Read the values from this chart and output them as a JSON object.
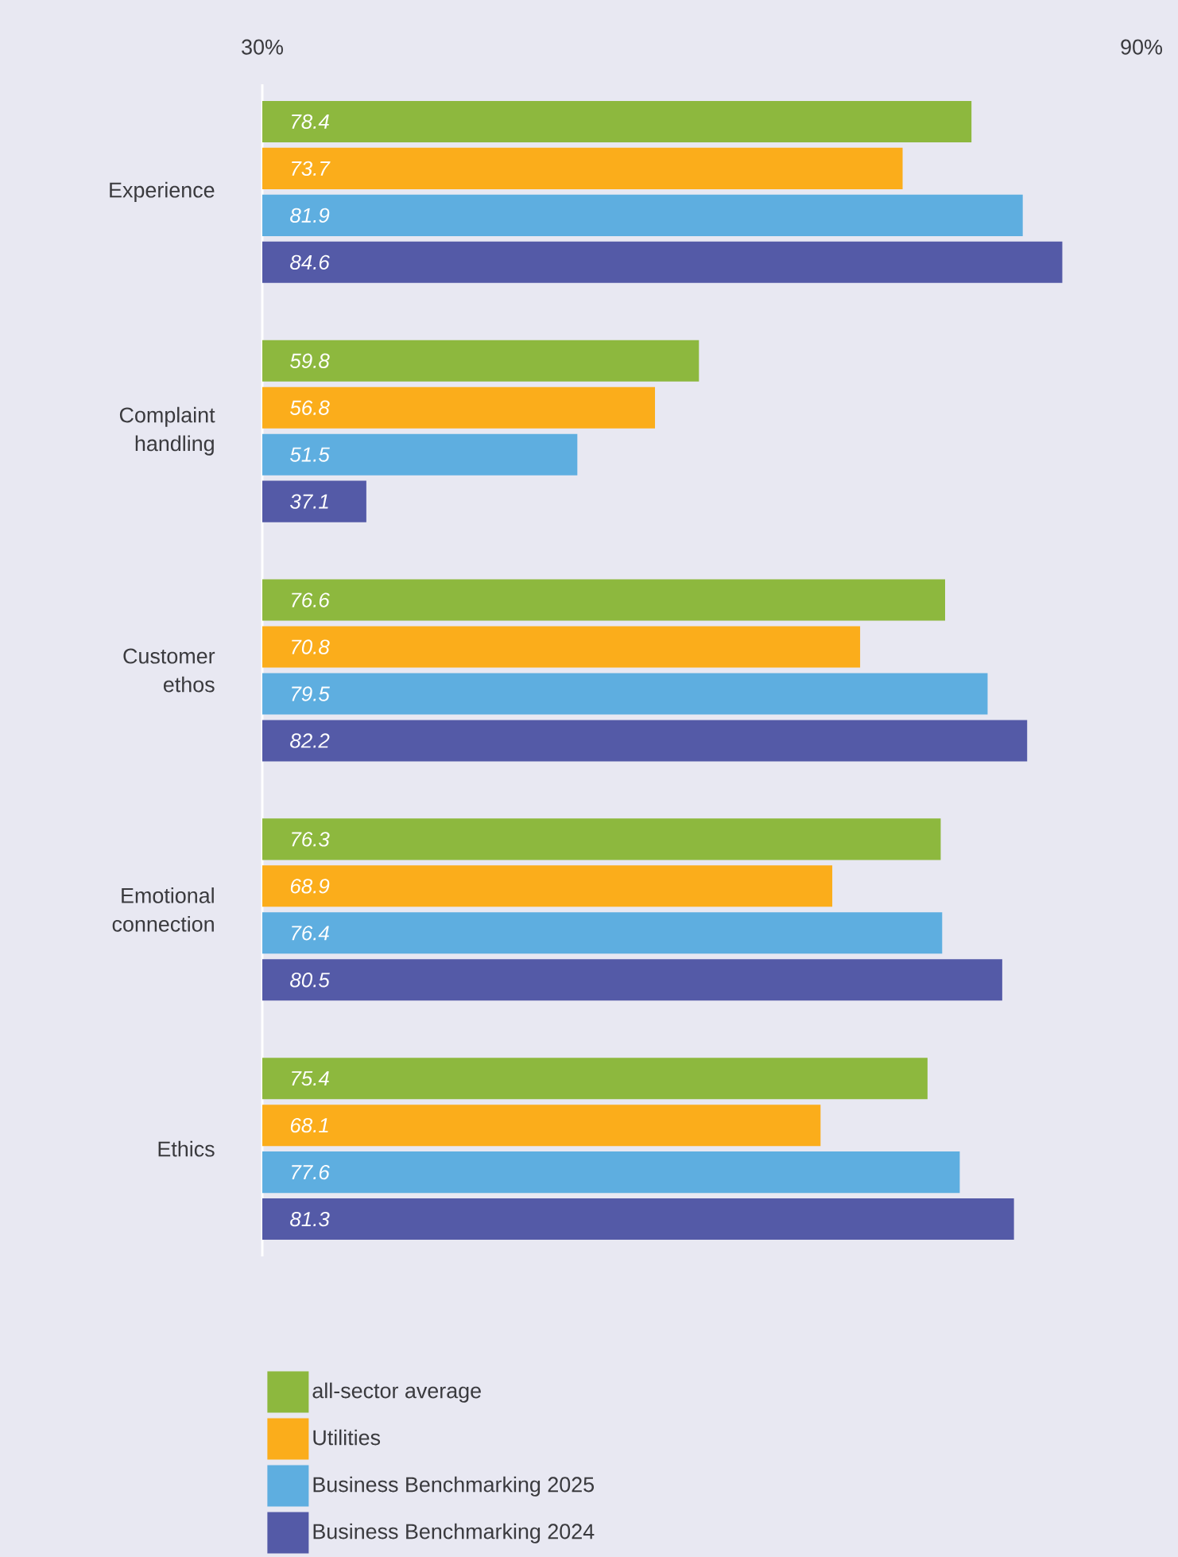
{
  "chart_data": {
    "type": "bar",
    "orientation": "horizontal",
    "data_labels": true,
    "legend": "bottom",
    "categories": [
      "Experience",
      "Complaint handling",
      "Customer ethos",
      "Emotional connection",
      "Ethics"
    ],
    "xlim": [
      30,
      90
    ],
    "xticks": [
      {
        "value": 30,
        "label": "30%"
      },
      {
        "value": 90,
        "label": "90%"
      }
    ],
    "series": [
      {
        "name": "all-sector average",
        "color": "#8db83e",
        "values": [
          78.4,
          59.8,
          76.6,
          76.3,
          75.4
        ]
      },
      {
        "name": "Utilities",
        "color": "#fbad1b",
        "values": [
          73.7,
          56.8,
          70.8,
          68.9,
          68.1
        ]
      },
      {
        "name": "Business Benchmarking 2025",
        "color": "#5eaee0",
        "values": [
          81.9,
          51.5,
          79.5,
          76.4,
          77.6
        ]
      },
      {
        "name": "Business Benchmarking 2024",
        "color": "#545aa7",
        "values": [
          84.6,
          37.1,
          82.2,
          80.5,
          81.3
        ]
      }
    ]
  }
}
